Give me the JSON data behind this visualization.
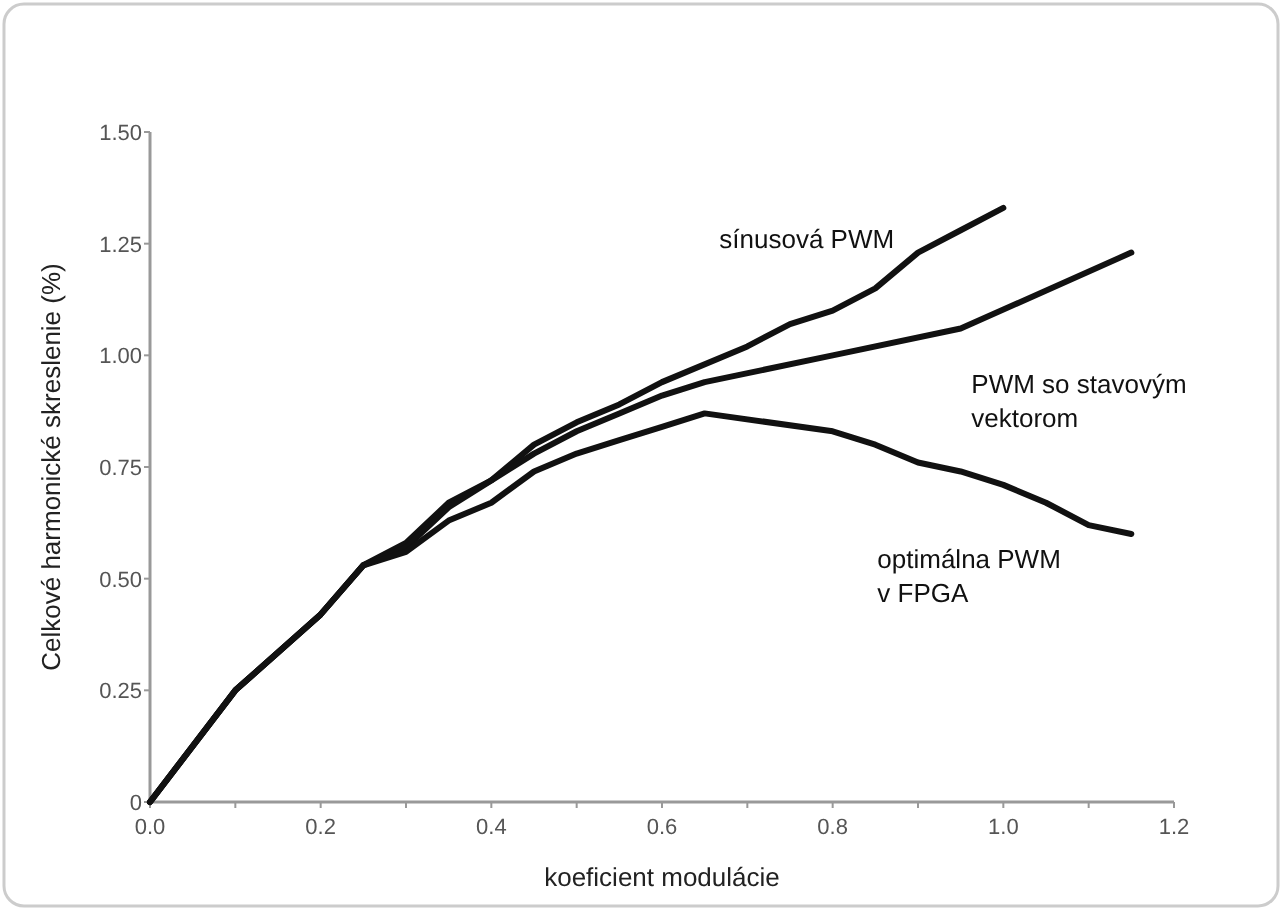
{
  "chart_data": {
    "type": "line",
    "xlabel": "koeficient modulácie",
    "ylabel": "Celkové harmonické skreslenie (%)",
    "xlim": [
      0,
      1.2
    ],
    "ylim": [
      0,
      1.5
    ],
    "xticks": [
      {
        "value": 0,
        "label": "0.0"
      },
      {
        "value": 0.1,
        "label": null
      },
      {
        "value": 0.2,
        "label": "0.2"
      },
      {
        "value": 0.3,
        "label": null
      },
      {
        "value": 0.4,
        "label": "0.4"
      },
      {
        "value": 0.5,
        "label": null
      },
      {
        "value": 0.6,
        "label": "0.6"
      },
      {
        "value": 0.7,
        "label": null
      },
      {
        "value": 0.8,
        "label": "0.8"
      },
      {
        "value": 0.9,
        "label": null
      },
      {
        "value": 1.0,
        "label": "1.0"
      },
      {
        "value": 1.1,
        "label": null
      },
      {
        "value": 1.2,
        "label": "1.2"
      }
    ],
    "yticks": [
      0,
      {
        "value": 0.25,
        "label": "0.25"
      },
      {
        "value": 0.5,
        "label": "0.50"
      },
      {
        "value": 0.75,
        "label": "0.75"
      },
      {
        "value": 1.0,
        "label": "1.00"
      },
      {
        "value": 1.25,
        "label": "1.25"
      },
      {
        "value": 1.5,
        "label": "1.50"
      }
    ],
    "grid": false,
    "marker": "none",
    "line_style": "solid",
    "series": [
      {
        "name": "sínusová PWM",
        "color": "#111111",
        "x": [
          0,
          0.1,
          0.2,
          0.25,
          0.3,
          0.35,
          0.4,
          0.45,
          0.5,
          0.55,
          0.6,
          0.7,
          0.75,
          0.8,
          0.85,
          0.9,
          0.95,
          1.0
        ],
        "values": [
          0,
          0.25,
          0.42,
          0.53,
          0.58,
          0.67,
          0.72,
          0.8,
          0.85,
          0.89,
          0.94,
          1.02,
          1.07,
          1.1,
          1.15,
          1.23,
          1.28,
          1.33
        ]
      },
      {
        "name": "PWM so stavovým\nvektorom",
        "color": "#111111",
        "x": [
          0,
          0.1,
          0.2,
          0.25,
          0.3,
          0.35,
          0.4,
          0.45,
          0.5,
          0.55,
          0.6,
          0.65,
          0.8,
          0.95,
          1.15
        ],
        "values": [
          0,
          0.25,
          0.42,
          0.53,
          0.57,
          0.66,
          0.72,
          0.78,
          0.83,
          0.87,
          0.91,
          0.94,
          1.0,
          1.06,
          1.23
        ]
      },
      {
        "name": "optimálna PWM\nv FPGA",
        "color": "#111111",
        "x": [
          0,
          0.1,
          0.2,
          0.25,
          0.3,
          0.35,
          0.4,
          0.45,
          0.5,
          0.55,
          0.6,
          0.65,
          0.8,
          0.85,
          0.9,
          0.95,
          1.0,
          1.05,
          1.1,
          1.15
        ],
        "values": [
          0,
          0.25,
          0.42,
          0.53,
          0.56,
          0.63,
          0.67,
          0.74,
          0.78,
          0.81,
          0.84,
          0.87,
          0.83,
          0.8,
          0.76,
          0.74,
          0.71,
          0.67,
          0.62,
          0.6
        ]
      }
    ]
  }
}
